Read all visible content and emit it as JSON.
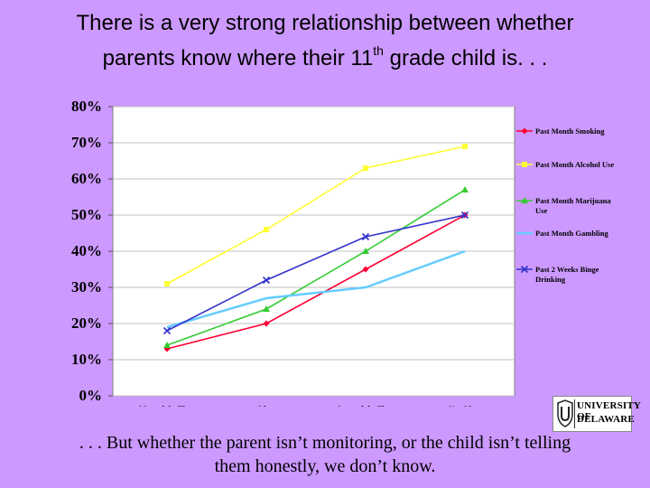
{
  "header": {
    "title_line1": "There is a very strong relationship between whether",
    "title_line2_pre": "parents know where their 11",
    "title_line2_sup": "th",
    "title_line2_post": " grade child is. . ."
  },
  "chart_data": {
    "type": "line",
    "categories": [
      "Most of the Time",
      "Often",
      "Some of the Time",
      "Not Often"
    ],
    "yticks": [
      "0%",
      "10%",
      "20%",
      "30%",
      "40%",
      "50%",
      "60%",
      "70%",
      "80%"
    ],
    "ylim": [
      0,
      80
    ],
    "grid": true,
    "legend_position": "right",
    "series": [
      {
        "name": "Past Month Smoking",
        "color": "#ff0033",
        "marker": "diamond",
        "values": [
          13,
          20,
          35,
          50
        ]
      },
      {
        "name": "Past Month Alcohol Use",
        "color": "#ffff33",
        "marker": "square",
        "values": [
          31,
          46,
          63,
          69
        ]
      },
      {
        "name": "Past Month Marijuana Use",
        "color": "#33cc33",
        "marker": "triangle",
        "values": [
          14,
          24,
          40,
          57
        ]
      },
      {
        "name": "Past Month Gambling",
        "color": "#66ccff",
        "marker": "none",
        "values": [
          19,
          27,
          30,
          40
        ]
      },
      {
        "name": "Past 2 Weeks Binge Drinking",
        "color": "#3333cc",
        "marker": "x",
        "values": [
          18,
          32,
          44,
          50
        ]
      }
    ]
  },
  "logo": {
    "line1": "UNIVERSITY OF",
    "line2": "DELAWARE",
    "icon": "university-crest-icon"
  },
  "footer": {
    "line1": ". . . But whether the parent isn’t monitoring, or the child isn’t telling",
    "line2": "them honestly, we don’t know."
  }
}
